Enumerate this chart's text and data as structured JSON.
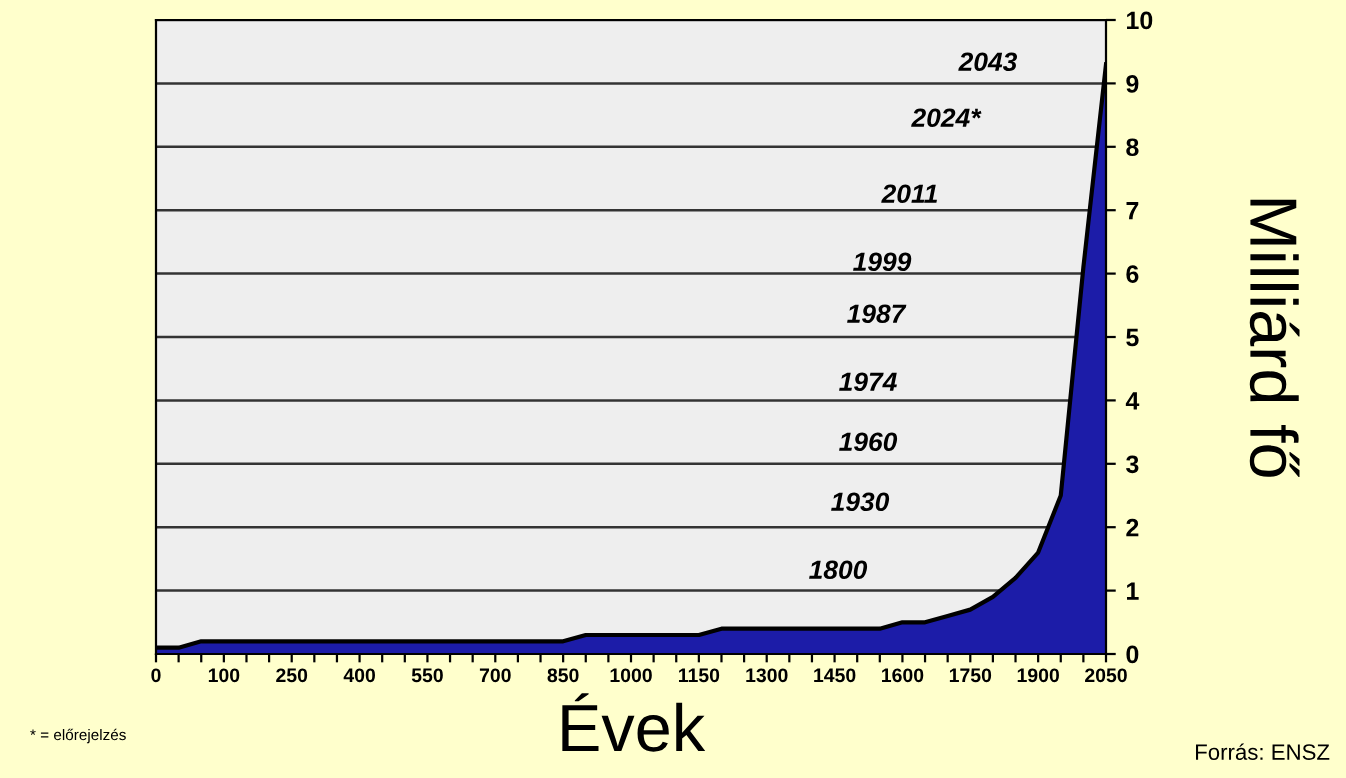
{
  "chart_data": {
    "type": "area",
    "xlabel": "Évek",
    "ylabel": "Milliárd fő",
    "categories": [
      "0",
      null,
      null,
      "100",
      null,
      null,
      "250",
      null,
      null,
      "400",
      null,
      null,
      "550",
      null,
      null,
      "700",
      null,
      null,
      "850",
      null,
      null,
      "1000",
      null,
      null,
      "1150",
      null,
      null,
      "1300",
      null,
      null,
      "1450",
      null,
      null,
      "1600",
      null,
      null,
      "1750",
      null,
      null,
      "1900",
      null,
      null,
      "2050"
    ],
    "series": [
      {
        "color": "#1c1ca8",
        "values": [
          0.1,
          0.1,
          0.2,
          0.2,
          0.2,
          0.2,
          0.2,
          0.2,
          0.2,
          0.2,
          0.2,
          0.2,
          0.2,
          0.2,
          0.2,
          0.2,
          0.2,
          0.2,
          0.2,
          0.3,
          0.3,
          0.3,
          0.3,
          0.3,
          0.3,
          0.4,
          0.4,
          0.4,
          0.4,
          0.4,
          0.4,
          0.4,
          0.4,
          0.5,
          0.5,
          0.6,
          0.7,
          0.9,
          1.2,
          1.6,
          2.5,
          6.1,
          9.3
        ]
      }
    ],
    "ylim": [
      0,
      10
    ],
    "yticks": [
      0,
      1,
      2,
      3,
      4,
      5,
      6,
      7,
      8,
      9,
      10
    ],
    "grid": "y",
    "annotations": [
      "1800",
      "1930",
      "1960",
      "1974",
      "1987",
      "1999",
      "2011",
      "2024*",
      "2043",
      "* = előrejelzés",
      "Forrás: ENSZ"
    ]
  }
}
